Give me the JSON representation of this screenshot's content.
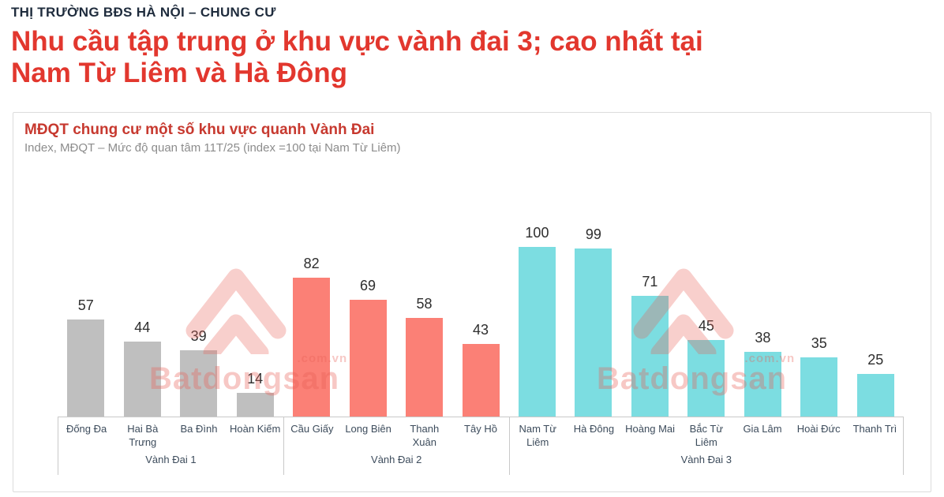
{
  "header": {
    "kicker": "THỊ TRƯỜNG BĐS HÀ NỘI – CHUNG CƯ",
    "title_line1": "Nhu cầu tập trung ở khu vực vành đai 3; cao nhất tại",
    "title_line2": "Nam Từ Liêm và Hà Đông"
  },
  "card": {
    "title": "MĐQT chung cư một số khu vực quanh Vành Đai",
    "subtitle": "Index, MĐQT – Mức độ quan tâm 11T/25 (index =100 tại Nam Từ Liêm)"
  },
  "watermark": {
    "brand": "Batdongsan",
    "domain": ".com.vn"
  },
  "colors": {
    "accent_red": "#E2372E",
    "card_title_red": "#C7392F",
    "heading_navy": "#1F2C3D",
    "bar_gray": "#BFBFBF",
    "bar_salmon": "#FB8076",
    "bar_teal": "#7CDDE1"
  },
  "chart_data": {
    "type": "bar",
    "title": "MĐQT chung cư một số khu vực quanh Vành Đai",
    "subtitle": "Index, MĐQT – Mức độ quan tâm 11T/25 (index =100 tại Nam Từ Liêm)",
    "ylim": [
      0,
      100
    ],
    "legend_position": "none",
    "grid": false,
    "groups": [
      {
        "label": "Vành Đai 1",
        "color": "#BFBFBF",
        "categories": [
          "Đống Đa",
          "Hai Bà Trưng",
          "Ba Đình",
          "Hoàn Kiếm"
        ],
        "values": [
          57,
          44,
          39,
          14
        ]
      },
      {
        "label": "Vành Đai 2",
        "color": "#FB8076",
        "categories": [
          "Cầu Giấy",
          "Long Biên",
          "Thanh Xuân",
          "Tây Hồ"
        ],
        "values": [
          82,
          69,
          58,
          43
        ]
      },
      {
        "label": "Vành Đai 3",
        "color": "#7CDDE1",
        "categories": [
          "Nam Từ Liêm",
          "Hà Đông",
          "Hoàng Mai",
          "Bắc Từ Liêm",
          "Gia Lâm",
          "Hoài Đức",
          "Thanh Trì"
        ],
        "values": [
          100,
          99,
          71,
          45,
          38,
          35,
          25
        ]
      }
    ]
  }
}
